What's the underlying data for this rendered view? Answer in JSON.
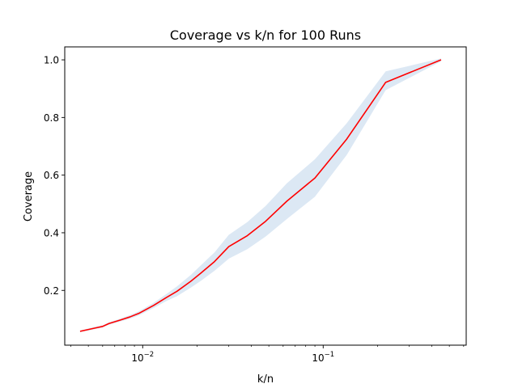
{
  "chart_data": {
    "type": "line",
    "title": "Coverage vs k/n for 100 Runs",
    "xlabel": "k/n",
    "ylabel": "Coverage",
    "x_scale": "log",
    "xlim": [
      0.0037,
      0.62
    ],
    "ylim": [
      0.01,
      1.045
    ],
    "grid": false,
    "x_ticks": [
      {
        "value": 0.01,
        "base": "10",
        "exp": "−2"
      },
      {
        "value": 0.1,
        "base": "10",
        "exp": "−1"
      }
    ],
    "y_ticks": [
      {
        "value": 0.2,
        "label": "0.2"
      },
      {
        "value": 0.4,
        "label": "0.4"
      },
      {
        "value": 0.6,
        "label": "0.6"
      },
      {
        "value": 0.8,
        "label": "0.8"
      },
      {
        "value": 1.0,
        "label": "1.0"
      }
    ],
    "series": [
      {
        "color": "#ff0000",
        "band_color": "#dce8f4",
        "x": [
          0.0045,
          0.0055,
          0.006,
          0.0065,
          0.0075,
          0.0085,
          0.0095,
          0.0115,
          0.0135,
          0.0155,
          0.0185,
          0.021,
          0.025,
          0.03,
          0.038,
          0.048,
          0.063,
          0.09,
          0.135,
          0.222,
          0.45
        ],
        "values": [
          0.058,
          0.07,
          0.075,
          0.085,
          0.097,
          0.108,
          0.12,
          0.148,
          0.175,
          0.197,
          0.232,
          0.26,
          0.3,
          0.352,
          0.39,
          0.44,
          0.51,
          0.59,
          0.725,
          0.922,
          1.0
        ],
        "lower": [
          0.055,
          0.066,
          0.071,
          0.081,
          0.092,
          0.102,
          0.113,
          0.139,
          0.163,
          0.18,
          0.21,
          0.233,
          0.268,
          0.31,
          0.343,
          0.387,
          0.448,
          0.525,
          0.67,
          0.895,
          0.995
        ],
        "upper": [
          0.061,
          0.074,
          0.079,
          0.089,
          0.102,
          0.114,
          0.127,
          0.157,
          0.187,
          0.214,
          0.254,
          0.287,
          0.332,
          0.393,
          0.437,
          0.493,
          0.572,
          0.655,
          0.78,
          0.96,
          1.005
        ]
      }
    ]
  }
}
